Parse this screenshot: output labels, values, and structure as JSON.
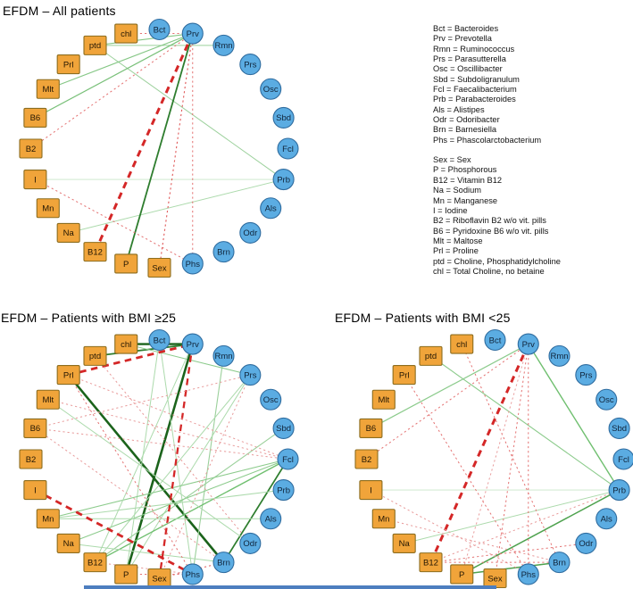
{
  "figure": {
    "background": "#ffffff",
    "accent_bar_color": "#4D7EBF",
    "positive_edge_color": "#2E7D2E",
    "negative_edge_color": "#D42727"
  },
  "node_style": {
    "bacteria_fill": "#5BACE2",
    "bacteria_border": "#2F6C9F",
    "factor_fill": "#F0A43A",
    "factor_border": "#8C6D1F",
    "bacteria_label_color": "#10243A",
    "factor_label_color": "#241703"
  },
  "layout_order": [
    "Bct",
    "Prv",
    "Rmn",
    "Prs",
    "Osc",
    "Sbd",
    "Fcl",
    "Prb",
    "Als",
    "Odr",
    "Brn",
    "Phs",
    "Sex",
    "P",
    "B12",
    "Na",
    "Mn",
    "I",
    "B2",
    "B6",
    "Mlt",
    "Prl",
    "ptd",
    "chl"
  ],
  "bacteria_nodes": [
    "Bct",
    "Prv",
    "Rmn",
    "Prs",
    "Osc",
    "Sbd",
    "Fcl",
    "Prb",
    "Als",
    "Odr",
    "Brn",
    "Phs"
  ],
  "factor_nodes": [
    "Sex",
    "P",
    "B12",
    "Na",
    "Mn",
    "I",
    "B2",
    "B6",
    "Mlt",
    "Prl",
    "ptd",
    "chl"
  ],
  "diagrams": [
    {
      "key": "all",
      "title": "EFDM – All patients",
      "edges": [
        {
          "a": "ptd",
          "b": "Prv",
          "c": "#86C786",
          "w": 1.1,
          "s": "solid"
        },
        {
          "a": "ptd",
          "b": "Rmn",
          "c": "#9BD09B",
          "w": 1,
          "s": "solid"
        },
        {
          "a": "ptd",
          "b": "Prb",
          "c": "#9BD09B",
          "w": 1,
          "s": "solid"
        },
        {
          "a": "Mlt",
          "b": "Prv",
          "c": "#86C786",
          "w": 1.1,
          "s": "solid"
        },
        {
          "a": "B6",
          "b": "Prv",
          "c": "#79C079",
          "w": 1.2,
          "s": "solid"
        },
        {
          "a": "I",
          "b": "Prb",
          "c": "#C9E6C9",
          "w": 0.9,
          "s": "solid"
        },
        {
          "a": "Na",
          "b": "Prb",
          "c": "#ACDAAC",
          "w": 1,
          "s": "solid"
        },
        {
          "a": "P",
          "b": "Prv",
          "c": "#2E7D2E",
          "w": 1.8,
          "s": "solid"
        },
        {
          "a": "chl",
          "b": "Prv",
          "c": "#E47272",
          "w": 1,
          "s": "dot"
        },
        {
          "a": "B2",
          "b": "Prv",
          "c": "#E47272",
          "w": 1,
          "s": "dot"
        },
        {
          "a": "I",
          "b": "Phs",
          "c": "#E47272",
          "w": 1,
          "s": "dot"
        },
        {
          "a": "Sex",
          "b": "Prv",
          "c": "#E05A5A",
          "w": 1.1,
          "s": "dot"
        },
        {
          "a": "Phs",
          "b": "Prv",
          "c": "#E47272",
          "w": 1,
          "s": "dot"
        },
        {
          "a": "B12",
          "b": "Prv",
          "c": "#D42727",
          "w": 3,
          "s": "dash"
        }
      ]
    },
    {
      "key": "bmi_ge25",
      "title": "EFDM – Patients with BMI ≥25",
      "edges": [
        {
          "a": "chl",
          "b": "Prv",
          "c": "#1B631B",
          "w": 2.4,
          "s": "solid"
        },
        {
          "a": "ptd",
          "b": "Prv",
          "c": "#2E7D2E",
          "w": 1.8,
          "s": "solid"
        },
        {
          "a": "chl",
          "b": "Prs",
          "c": "#8CCB8C",
          "w": 1,
          "s": "solid"
        },
        {
          "a": "P",
          "b": "Prv",
          "c": "#1B631B",
          "w": 2.6,
          "s": "solid"
        },
        {
          "a": "Prl",
          "b": "Brn",
          "c": "#1B631B",
          "w": 2.6,
          "s": "solid"
        },
        {
          "a": "Fcl",
          "b": "Brn",
          "c": "#2E7D2E",
          "w": 1.7,
          "s": "solid"
        },
        {
          "a": "Bct",
          "b": "P",
          "c": "#ACDAAC",
          "w": 1,
          "s": "solid"
        },
        {
          "a": "Bct",
          "b": "Phs",
          "c": "#ACDAAC",
          "w": 1,
          "s": "solid"
        },
        {
          "a": "Rmn",
          "b": "Phs",
          "c": "#9BD09B",
          "w": 1.1,
          "s": "solid"
        },
        {
          "a": "Prs",
          "b": "B12",
          "c": "#ACDAAC",
          "w": 1,
          "s": "solid"
        },
        {
          "a": "Prs",
          "b": "P",
          "c": "#ACDAAC",
          "w": 1,
          "s": "solid"
        },
        {
          "a": "Sbd",
          "b": "B12",
          "c": "#9BD09B",
          "w": 1.1,
          "s": "solid"
        },
        {
          "a": "Fcl",
          "b": "B12",
          "c": "#6FBF6F",
          "w": 1.4,
          "s": "solid"
        },
        {
          "a": "Fcl",
          "b": "Na",
          "c": "#8CCB8C",
          "w": 1.1,
          "s": "solid"
        },
        {
          "a": "Fcl",
          "b": "Mn",
          "c": "#8CCB8C",
          "w": 1.1,
          "s": "solid"
        },
        {
          "a": "Prb",
          "b": "Mn",
          "c": "#ACDAAC",
          "w": 1,
          "s": "solid"
        },
        {
          "a": "Als",
          "b": "Mn",
          "c": "#ACDAAC",
          "w": 1,
          "s": "solid"
        },
        {
          "a": "Odr",
          "b": "Mlt",
          "c": "#ACDAAC",
          "w": 1,
          "s": "solid"
        },
        {
          "a": "B12",
          "b": "Prv",
          "c": "#ACDAAC",
          "w": 1,
          "s": "solid"
        },
        {
          "a": "Na",
          "b": "Brn",
          "c": "#ACDAAC",
          "w": 1,
          "s": "solid"
        },
        {
          "a": "Prl",
          "b": "Prv",
          "c": "#D42727",
          "w": 2.8,
          "s": "dash"
        },
        {
          "a": "I",
          "b": "Phs",
          "c": "#D42727",
          "w": 2.8,
          "s": "dash"
        },
        {
          "a": "Prv",
          "b": "Sex",
          "c": "#D42727",
          "w": 2.3,
          "s": "dash"
        },
        {
          "a": "B6",
          "b": "Fcl",
          "c": "#E89A9A",
          "w": 1,
          "s": "dot"
        },
        {
          "a": "B6",
          "b": "Brn",
          "c": "#E89A9A",
          "w": 1,
          "s": "dot"
        },
        {
          "a": "B6",
          "b": "Prs",
          "c": "#E89A9A",
          "w": 1,
          "s": "dot"
        },
        {
          "a": "Mlt",
          "b": "Fcl",
          "c": "#E89A9A",
          "w": 1,
          "s": "dot"
        },
        {
          "a": "Prl",
          "b": "Fcl",
          "c": "#E89A9A",
          "w": 1,
          "s": "dot"
        },
        {
          "a": "Prl",
          "b": "Phs",
          "c": "#E47272",
          "w": 1,
          "s": "dot"
        },
        {
          "a": "ptd",
          "b": "Odr",
          "c": "#E89A9A",
          "w": 1,
          "s": "dot"
        },
        {
          "a": "P",
          "b": "Phs",
          "c": "#E47272",
          "w": 1,
          "s": "dot"
        },
        {
          "a": "Sex",
          "b": "Brn",
          "c": "#E47272",
          "w": 1.1,
          "s": "dot"
        },
        {
          "a": "Prs",
          "b": "Sex",
          "c": "#E89A9A",
          "w": 1,
          "s": "dot"
        },
        {
          "a": "B12",
          "b": "Phs",
          "c": "#E89A9A",
          "w": 1,
          "s": "dot"
        }
      ]
    },
    {
      "key": "bmi_lt25",
      "title": "EFDM – Patients with BMI <25",
      "edges": [
        {
          "a": "B6",
          "b": "Prv",
          "c": "#8CCB8C",
          "w": 1.2,
          "s": "solid"
        },
        {
          "a": "ptd",
          "b": "Prb",
          "c": "#8CCB8C",
          "w": 1.1,
          "s": "solid"
        },
        {
          "a": "Prv",
          "b": "Prb",
          "c": "#6FBF6F",
          "w": 1.4,
          "s": "solid"
        },
        {
          "a": "I",
          "b": "Prb",
          "c": "#C9E6C9",
          "w": 0.9,
          "s": "solid"
        },
        {
          "a": "Na",
          "b": "Prb",
          "c": "#ACDAAC",
          "w": 1,
          "s": "solid"
        },
        {
          "a": "P",
          "b": "Brn",
          "c": "#4EA24E",
          "w": 1.5,
          "s": "solid"
        },
        {
          "a": "P",
          "b": "Prb",
          "c": "#4EA24E",
          "w": 1.5,
          "s": "solid"
        },
        {
          "a": "B12",
          "b": "Prv",
          "c": "#D42727",
          "w": 3,
          "s": "dash"
        },
        {
          "a": "B2",
          "b": "Prv",
          "c": "#E47272",
          "w": 1,
          "s": "dot"
        },
        {
          "a": "chl",
          "b": "Brn",
          "c": "#E47272",
          "w": 1,
          "s": "dot"
        },
        {
          "a": "Prv",
          "b": "Sex",
          "c": "#E47272",
          "w": 1,
          "s": "dot"
        },
        {
          "a": "Prv",
          "b": "Phs",
          "c": "#E47272",
          "w": 1,
          "s": "dot"
        },
        {
          "a": "Prv",
          "b": "P",
          "c": "#E89A9A",
          "w": 1,
          "s": "dot"
        },
        {
          "a": "Prl",
          "b": "Phs",
          "c": "#E47272",
          "w": 1,
          "s": "dot"
        },
        {
          "a": "I",
          "b": "Phs",
          "c": "#E89A9A",
          "w": 1,
          "s": "dot"
        },
        {
          "a": "Mn",
          "b": "Brn",
          "c": "#E89A9A",
          "w": 1,
          "s": "dot"
        },
        {
          "a": "B12",
          "b": "Odr",
          "c": "#E47272",
          "w": 1,
          "s": "dot"
        },
        {
          "a": "B12",
          "b": "Brn",
          "c": "#E47272",
          "w": 1,
          "s": "dot"
        },
        {
          "a": "B12",
          "b": "Prb",
          "c": "#E89A9A",
          "w": 1,
          "s": "dot"
        }
      ]
    }
  ],
  "legend": {
    "bacteria": [
      "Bct = Bacteroides",
      "Prv = Prevotella",
      "Rmn = Ruminococcus",
      "Prs = Parasutterella",
      "Osc = Oscillibacter",
      "Sbd = Subdoligranulum",
      "Fcl = Faecalibacterium",
      "Prb = Parabacteroides",
      "Als = Alistipes",
      "Odr = Odoribacter",
      "Brn = Barnesiella",
      "Phs = Phascolarctobacterium"
    ],
    "factors": [
      "Sex = Sex",
      "P = Phosphorous",
      "B12 = Vitamin B12",
      "Na = Sodium",
      "Mn = Manganese",
      "I = Iodine",
      "B2 = Riboflavin B2 w/o vit. pills",
      "B6 = Pyridoxine B6 w/o vit. pills",
      "Mlt = Maltose",
      "Prl = Proline",
      "ptd = Choline, Phosphatidylcholine",
      "chl = Total Choline, no betaine"
    ]
  }
}
